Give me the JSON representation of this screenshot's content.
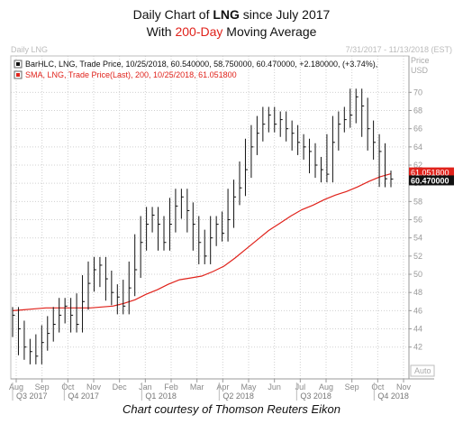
{
  "heading": {
    "line1_pre": "Daily Chart of ",
    "line1_bold": "LNG",
    "line1_post": " since July 2017",
    "line2_pre": "With ",
    "line2_highlight": "200-Day",
    "line2_post": " Moving Average"
  },
  "caption": "Chart courtesy of Thomson Reuters Eikon",
  "colors": {
    "price": "#111111",
    "sma": "#e0221b",
    "grid": "#d0d0d0",
    "sma_tag_bg": "#e0221b",
    "price_tag_bg": "#111111"
  },
  "chart_data": {
    "type": "line",
    "panel_title": "Daily LNG",
    "date_range": "7/31/2017 - 11/13/2018 (EST)",
    "axis_title": "Price",
    "axis_unit": "USD",
    "auto_label": "Auto",
    "legend": [
      {
        "name": "BarHLC, LNG, Trade Price, 10/25/2018, 60.540000, 58.750000, 60.470000, +2.180000, (+3.74%),",
        "color": "#111111"
      },
      {
        "name": "SMA, LNG, Trade Price(Last), 200, 10/25/2018, 61.051800",
        "color": "#e0221b"
      }
    ],
    "last_values": {
      "sma": "61.051800",
      "price": "60.470000"
    },
    "ylim": [
      38.5,
      74
    ],
    "y_ticks": [
      42,
      44,
      46,
      48,
      50,
      52,
      54,
      56,
      58,
      60,
      62,
      64,
      66,
      68,
      70
    ],
    "months": [
      "Aug",
      "Sep",
      "Oct",
      "Nov",
      "Dec",
      "Jan",
      "Feb",
      "Mar",
      "Apr",
      "May",
      "Jun",
      "Jul",
      "Aug",
      "Sep",
      "Oct",
      "Nov"
    ],
    "quarters": [
      "Q3 2017",
      "Q4 2017",
      "Q1 2018",
      "Q2 2018",
      "Q3 2018",
      "Q4 2018"
    ],
    "series": [
      {
        "name": "BarHLC",
        "points": [
          45.5,
          44.0,
          42.0,
          41.5,
          41.0,
          42.5,
          43.5,
          44.5,
          45.5,
          46.5,
          45.5,
          44.5,
          47.0,
          49.0,
          50.5,
          51.0,
          49.5,
          48.0,
          47.5,
          46.5,
          48.5,
          50.5,
          53.5,
          55.5,
          56.5,
          55.5,
          53.5,
          55.5,
          57.5,
          58.5,
          57.0,
          55.5,
          53.5,
          52.0,
          54.0,
          55.5,
          54.5,
          56.0,
          58.5,
          59.5,
          61.5,
          64.0,
          65.5,
          66.5,
          67.5,
          66.5,
          67.0,
          66.0,
          65.5,
          64.5,
          64.0,
          63.5,
          62.0,
          61.5,
          61.0,
          64.5,
          66.5,
          67.0,
          67.5,
          69.5,
          68.5,
          66.0,
          64.5,
          63.5,
          60.5,
          60.47
        ]
      },
      {
        "name": "SMA 200",
        "points": [
          46.0,
          46.1,
          46.2,
          46.3,
          46.3,
          46.3,
          46.3,
          46.3,
          46.4,
          46.5,
          46.8,
          47.2,
          47.8,
          48.3,
          48.9,
          49.4,
          49.6,
          49.8,
          50.3,
          50.9,
          51.8,
          52.8,
          53.8,
          54.8,
          55.6,
          56.4,
          57.1,
          57.6,
          58.2,
          58.7,
          59.1,
          59.6,
          60.2,
          60.7,
          61.05
        ]
      }
    ]
  }
}
